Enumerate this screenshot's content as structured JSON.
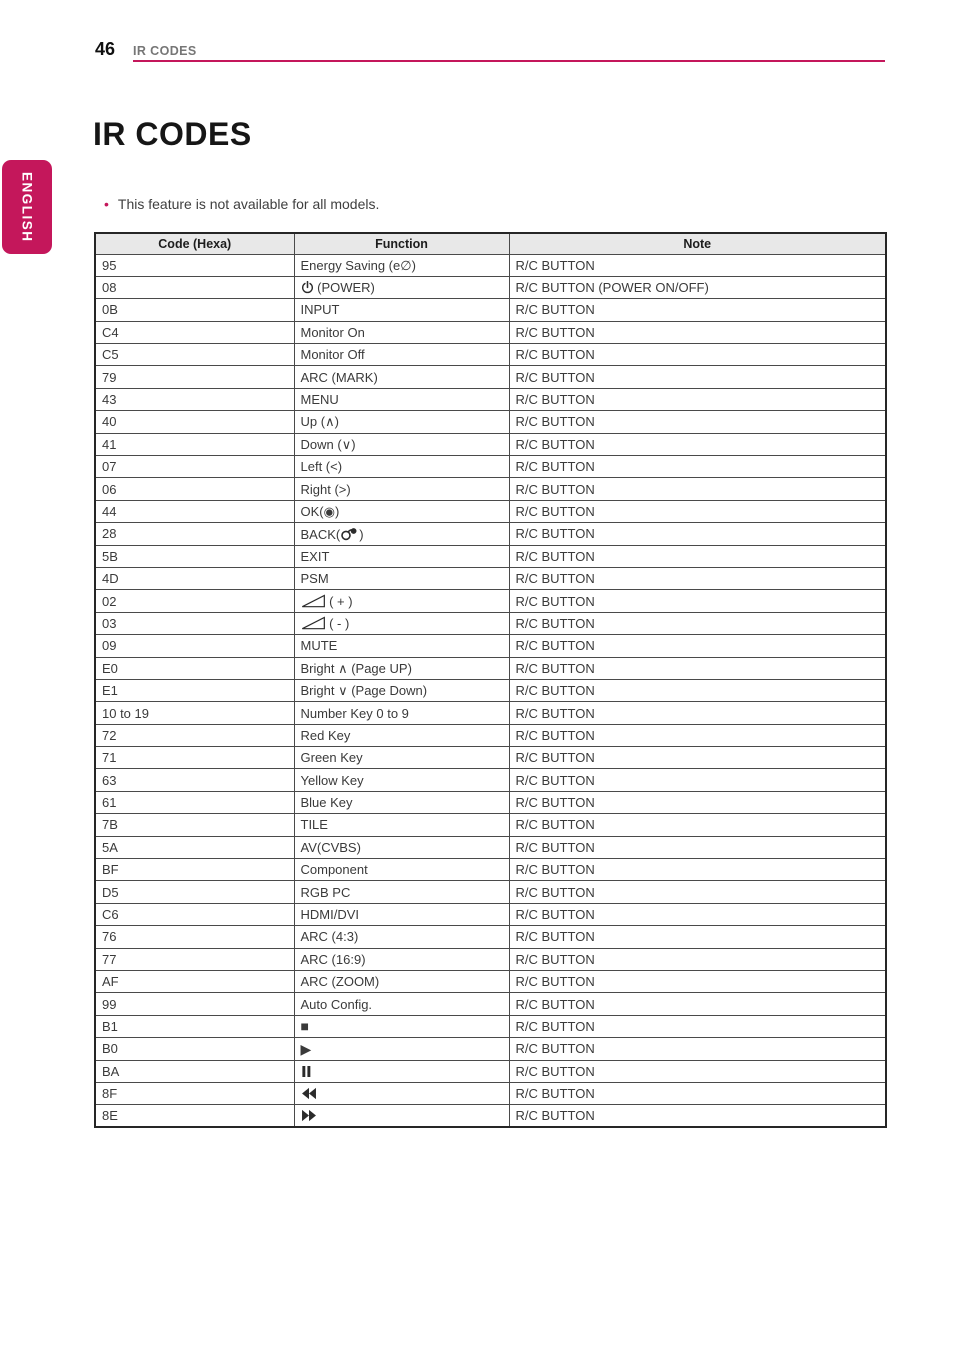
{
  "header": {
    "page_number": "46",
    "section_title": "IR CODES"
  },
  "sidebar": {
    "language_label": "ENGLISH"
  },
  "main": {
    "title": "IR CODES",
    "bullet": "•",
    "note": "This feature is not available for all models."
  },
  "colors": {
    "accent_pink": "#C4175B",
    "table_header_bg": "#E8E8E8",
    "header_gray": "#767676"
  },
  "table": {
    "columns": [
      "Code (Hexa)",
      "Function",
      "Note"
    ],
    "rows": [
      {
        "code": "95",
        "function": "Energy Saving ({energy-saving-icon})",
        "note": "R/C BUTTON"
      },
      {
        "code": "08",
        "function": "{power-icon} (POWER)",
        "note": "R/C BUTTON (POWER ON/OFF)"
      },
      {
        "code": "0B",
        "function": "INPUT",
        "note": "R/C BUTTON"
      },
      {
        "code": "C4",
        "function": "Monitor On",
        "note": "R/C BUTTON"
      },
      {
        "code": "C5",
        "function": "Monitor Off",
        "note": "R/C BUTTON"
      },
      {
        "code": "79",
        "function": "ARC (MARK)",
        "note": "R/C BUTTON"
      },
      {
        "code": "43",
        "function": "MENU",
        "note": "R/C BUTTON"
      },
      {
        "code": "40",
        "function": "Up ({up-arrow-icon})",
        "note": "R/C BUTTON"
      },
      {
        "code": "41",
        "function": "Down ({down-arrow-icon})",
        "note": "R/C BUTTON"
      },
      {
        "code": "07",
        "function": "Left (<)",
        "note": "R/C BUTTON"
      },
      {
        "code": "06",
        "function": "Right (>)",
        "note": "R/C BUTTON"
      },
      {
        "code": "44",
        "function": "OK({ok-icon})",
        "note": "R/C BUTTON"
      },
      {
        "code": "28",
        "function": "BACK({back-icon})",
        "note": "R/C BUTTON"
      },
      {
        "code": "5B",
        "function": "EXIT",
        "note": "R/C BUTTON"
      },
      {
        "code": "4D",
        "function": "PSM",
        "note": "R/C BUTTON"
      },
      {
        "code": "02",
        "function": "{volume-icon} ( + )",
        "note": "R/C BUTTON"
      },
      {
        "code": "03",
        "function": "{volume-icon} ( - )",
        "note": "R/C BUTTON"
      },
      {
        "code": "09",
        "function": "MUTE",
        "note": "R/C BUTTON"
      },
      {
        "code": "E0",
        "function": "Bright {up-arrow-icon} (Page UP)",
        "note": "R/C BUTTON"
      },
      {
        "code": "E1",
        "function": "Bright {down-arrow-icon} (Page Down)",
        "note": "R/C BUTTON"
      },
      {
        "code": "10 to 19",
        "function": "Number Key 0 to 9",
        "note": "R/C BUTTON"
      },
      {
        "code": "72",
        "function": "Red Key",
        "note": "R/C BUTTON"
      },
      {
        "code": "71",
        "function": "Green Key",
        "note": "R/C BUTTON"
      },
      {
        "code": "63",
        "function": "Yellow Key",
        "note": "R/C BUTTON"
      },
      {
        "code": "61",
        "function": "Blue Key",
        "note": "R/C BUTTON"
      },
      {
        "code": "7B",
        "function": "TILE",
        "note": "R/C BUTTON"
      },
      {
        "code": "5A",
        "function": "AV(CVBS)",
        "note": "R/C BUTTON"
      },
      {
        "code": "BF",
        "function": "Component",
        "note": "R/C BUTTON"
      },
      {
        "code": "D5",
        "function": "RGB PC",
        "note": "R/C BUTTON"
      },
      {
        "code": "C6",
        "function": "HDMI/DVI",
        "note": "R/C BUTTON"
      },
      {
        "code": "76",
        "function": "ARC (4:3)",
        "note": "R/C BUTTON"
      },
      {
        "code": "77",
        "function": "ARC (16:9)",
        "note": "R/C BUTTON"
      },
      {
        "code": "AF",
        "function": "ARC (ZOOM)",
        "note": "R/C BUTTON"
      },
      {
        "code": "99",
        "function": "Auto Config.",
        "note": "R/C BUTTON"
      },
      {
        "code": "B1",
        "function": "{stop-icon}",
        "note": "R/C BUTTON"
      },
      {
        "code": "B0",
        "function": "{play-icon}",
        "note": "R/C BUTTON"
      },
      {
        "code": "BA",
        "function": "{pause-icon}",
        "note": "R/C BUTTON"
      },
      {
        "code": "8F",
        "function": "{rewind-icon}",
        "note": "R/C BUTTON"
      },
      {
        "code": "8E",
        "function": "{fast-forward-icon}",
        "note": "R/C BUTTON"
      }
    ]
  }
}
